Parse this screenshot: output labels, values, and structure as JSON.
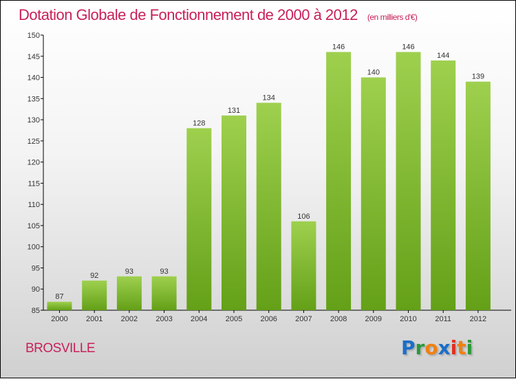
{
  "title": "Dotation Globale de Fonctionnement de 2000 à 2012",
  "subtitle": "(en milliers d'€)",
  "city": "BROSVILLE",
  "logo": {
    "text": "Proxiti",
    "colors": [
      "#1a6fc8",
      "#2a9a3a",
      "#f08010",
      "#1a6fc8",
      "#e03020",
      "#f08010",
      "#2a9a3a"
    ]
  },
  "chart_data": {
    "type": "bar",
    "title": "Dotation Globale de Fonctionnement de 2000 à 2012",
    "ylabel": "en milliers d'€",
    "categories": [
      "2000",
      "2001",
      "2002",
      "2003",
      "2004",
      "2005",
      "2006",
      "2007",
      "2008",
      "2009",
      "2010",
      "2011",
      "2012"
    ],
    "values": [
      87,
      92,
      93,
      93,
      128,
      131,
      134,
      106,
      146,
      140,
      146,
      144,
      139
    ],
    "ylim": [
      85,
      150
    ],
    "yticks": [
      85,
      90,
      95,
      100,
      105,
      110,
      115,
      120,
      125,
      130,
      135,
      140,
      145,
      150
    ],
    "bar_color": "#7cb82f"
  }
}
